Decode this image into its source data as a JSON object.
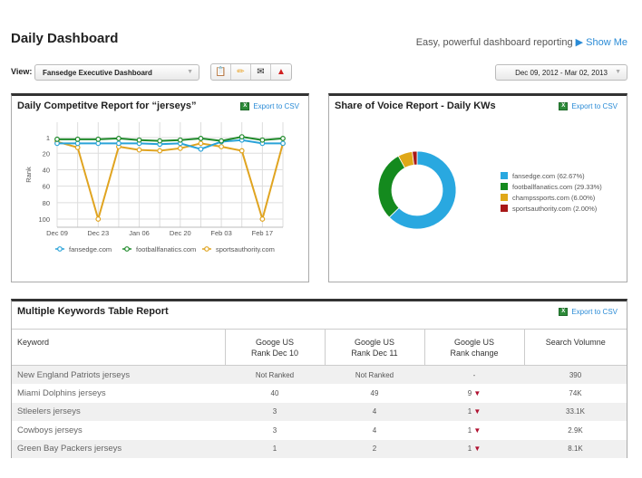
{
  "header": {
    "title": "Daily Dashboard",
    "tagline": "Easy, powerful dashboard reporting",
    "show_me": "Show Me"
  },
  "toolbar": {
    "view_label": "View:",
    "view_value": "Fansedge Executive Dashboard",
    "date_range": "Dec 09, 2012 - Mar 02, 2013",
    "icons": [
      "report-icon",
      "edit-icon",
      "email-icon",
      "pdf-icon"
    ]
  },
  "export_label": "Export to CSV",
  "competitive": {
    "title": "Daily Competitve Report for “jerseys”"
  },
  "sov": {
    "title": "Share of Voice Report - Daily KWs"
  },
  "chart_data": [
    {
      "type": "line",
      "title": "Daily Competitve Report for “jerseys”",
      "ylabel": "Rank",
      "ylim": [
        1,
        100
      ],
      "inverted": true,
      "yticks": [
        "1",
        "20",
        "40",
        "60",
        "80",
        "100"
      ],
      "ytick_values": [
        1,
        20,
        40,
        60,
        80,
        100
      ],
      "xtick_labels": [
        "Dec 09",
        "Dec 23",
        "Jan 06",
        "Dec 20",
        "Feb 03",
        "Feb 17"
      ],
      "xtick_every": 2,
      "series": [
        {
          "name": "fansedge.com",
          "color": "#2aa3d8",
          "values": [
            8,
            8,
            8,
            8,
            8,
            9,
            8,
            15,
            6,
            4,
            8,
            8
          ]
        },
        {
          "name": "footballfanatics.com",
          "color": "#1f8a2a",
          "values": [
            3,
            3,
            3,
            2,
            4,
            5,
            4,
            2,
            5,
            0,
            4,
            2
          ]
        },
        {
          "name": "sportsauthority.com",
          "color": "#e0a420",
          "values": [
            6,
            13,
            100,
            12,
            16,
            17,
            14,
            8,
            12,
            17,
            100,
            8
          ]
        }
      ]
    },
    {
      "type": "pie",
      "title": "Share of Voice Report - Daily KWs",
      "donut": true,
      "slices": [
        {
          "label": "fansedge.com (62.67%)",
          "value": 62.67,
          "color": "#29a8e0"
        },
        {
          "label": "footballfanatics.com (29.33%)",
          "value": 29.33,
          "color": "#148a1e"
        },
        {
          "label": "champssports.com (6.00%)",
          "value": 6.0,
          "color": "#e0a818"
        },
        {
          "label": "sportsauthority.com (2.00%)",
          "value": 2.0,
          "color": "#a81818"
        }
      ]
    }
  ],
  "table": {
    "title": "Multiple Keywords Table Report",
    "headers": [
      "Keyword",
      "Googe US\nRank Dec 10",
      "Google US\nRank Dec 11",
      "Google US\nRank change",
      "Search Volumne"
    ],
    "rows": [
      [
        "New England Patriots jerseys",
        "Not Ranked",
        "Not Ranked",
        "-",
        "390"
      ],
      [
        "Miami Dolphins jerseys",
        "40",
        "49",
        "9",
        "74K"
      ],
      [
        "Stleelers jerseys",
        "3",
        "4",
        "1",
        "33.1K"
      ],
      [
        "Cowboys jerseys",
        "3",
        "4",
        "1",
        "2.9K"
      ],
      [
        "Green Bay Packers jerseys",
        "1",
        "2",
        "1",
        "8.1K"
      ]
    ],
    "change_down": [
      false,
      true,
      true,
      true,
      true
    ]
  }
}
